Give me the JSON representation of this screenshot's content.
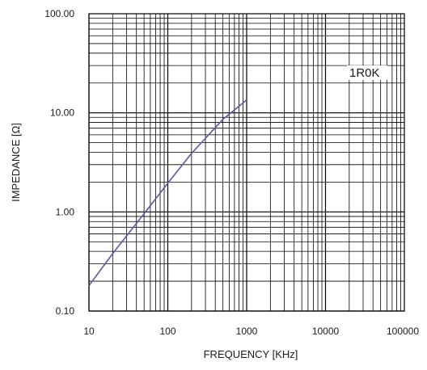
{
  "chart_data": {
    "type": "line",
    "title": "",
    "annotation": "1R0K",
    "xlabel": "FREQUENCY [KHz]",
    "ylabel": "IMPEDANCE [Ω]",
    "xscale": "log",
    "yscale": "log",
    "xlim": [
      10,
      100000
    ],
    "ylim": [
      0.1,
      100
    ],
    "x_tick_values": [
      10,
      100,
      1000,
      10000,
      100000
    ],
    "x_tick_labels": [
      "10",
      "100",
      "1000",
      "10000",
      "100000"
    ],
    "y_tick_values": [
      0.1,
      1,
      10,
      100
    ],
    "y_tick_labels": [
      "0.10",
      "1.00",
      "10.00",
      "100.00"
    ],
    "grid": true,
    "series": [
      {
        "x": [
          10,
          20,
          50,
          100,
          200,
          500,
          1000
        ],
        "y": [
          0.18,
          0.38,
          0.96,
          1.95,
          3.9,
          8.6,
          13.5
        ],
        "color": "#5a5aa0"
      }
    ]
  }
}
